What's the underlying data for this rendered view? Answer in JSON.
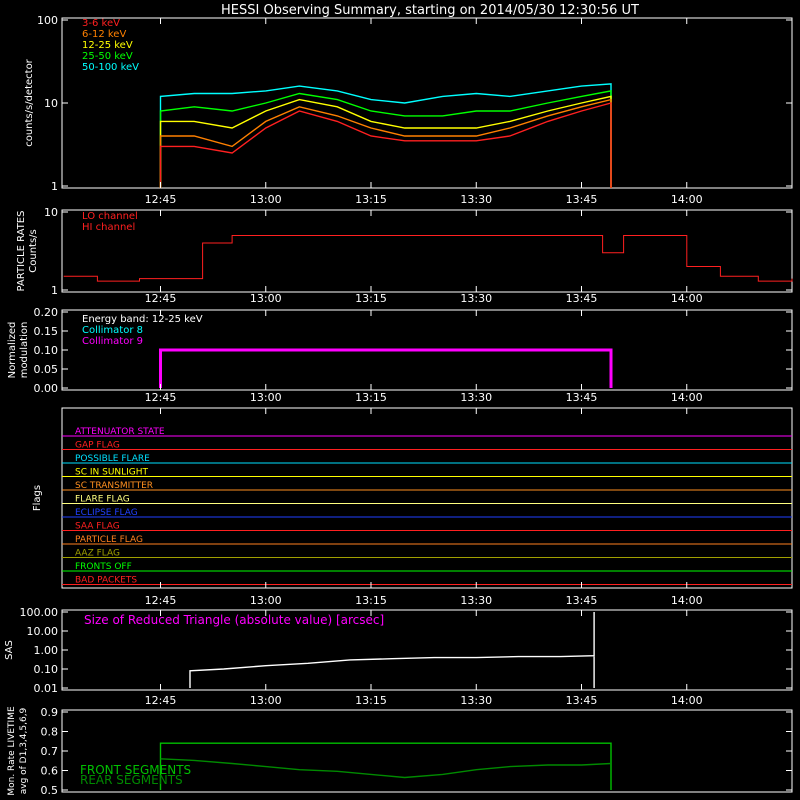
{
  "title": "HESSI Observing Summary, starting on 2014/05/30 12:30:56 UT",
  "colors": {
    "bg": "#000000",
    "axis": "#ffffff",
    "band_3_6": "#ff2020",
    "band_6_12": "#ff8000",
    "band_12_25": "#ffff00",
    "band_25_50": "#00ff00",
    "band_50_100": "#00ffff",
    "particle": "#ff2020",
    "coll8": "#00ffff",
    "coll9": "#ff00ff",
    "sas": "#ffffff",
    "livetime": "#00c000"
  },
  "chart_data": [
    {
      "id": "counts",
      "type": "line",
      "ylabel": "counts/s/detector",
      "yscale": "log",
      "ylim": [
        1,
        100
      ],
      "xlim": [
        12.516,
        14.25
      ],
      "y_ticks": [
        "100",
        "10",
        "1"
      ],
      "x_ticks": [
        "12:45",
        "13:00",
        "13:15",
        "13:30",
        "13:45",
        "14:00"
      ],
      "legend": [
        "3-6 keV",
        "6-12 keV",
        "12-25 keV",
        "25-50 keV",
        "50-100 keV"
      ],
      "legend_position": "top-left",
      "series": [
        {
          "name": "50-100 keV",
          "x": [
            12.75,
            12.83,
            12.92,
            13.0,
            13.08,
            13.17,
            13.25,
            13.33,
            13.42,
            13.5,
            13.58,
            13.67,
            13.75,
            13.82
          ],
          "values": [
            12,
            13,
            13,
            14,
            16,
            14,
            11,
            10,
            12,
            13,
            12,
            14,
            16,
            17
          ]
        },
        {
          "name": "25-50 keV",
          "x": [
            12.75,
            12.83,
            12.92,
            13.0,
            13.08,
            13.17,
            13.25,
            13.33,
            13.42,
            13.5,
            13.58,
            13.67,
            13.75,
            13.82
          ],
          "values": [
            8,
            9,
            8,
            10,
            13,
            11,
            8,
            7,
            7,
            8,
            8,
            10,
            12,
            14
          ]
        },
        {
          "name": "12-25 keV",
          "x": [
            12.75,
            12.83,
            12.92,
            13.0,
            13.08,
            13.17,
            13.25,
            13.33,
            13.42,
            13.5,
            13.58,
            13.67,
            13.75,
            13.82
          ],
          "values": [
            6,
            6,
            5,
            8,
            11,
            9,
            6,
            5,
            5,
            5,
            6,
            8,
            10,
            12
          ]
        },
        {
          "name": "6-12 keV",
          "x": [
            12.75,
            12.83,
            12.92,
            13.0,
            13.08,
            13.17,
            13.25,
            13.33,
            13.42,
            13.5,
            13.58,
            13.67,
            13.75,
            13.82
          ],
          "values": [
            4,
            4,
            3,
            6,
            9,
            7,
            5,
            4,
            4,
            4,
            5,
            7,
            9,
            11
          ]
        },
        {
          "name": "3-6 keV",
          "x": [
            12.75,
            12.83,
            12.92,
            13.0,
            13.08,
            13.17,
            13.25,
            13.33,
            13.42,
            13.5,
            13.58,
            13.67,
            13.75,
            13.82
          ],
          "values": [
            3,
            3,
            2.5,
            5,
            8,
            6,
            4,
            3.5,
            3.5,
            3.5,
            4,
            6,
            8,
            10
          ]
        }
      ]
    },
    {
      "id": "particle",
      "type": "line",
      "ylabel_lines": [
        "PARTICLE RATES",
        "Counts/s"
      ],
      "yscale": "log",
      "ylim": [
        1,
        10
      ],
      "y_ticks": [
        "10",
        "1"
      ],
      "legend": [
        "LO channel",
        "HI channel"
      ],
      "legend_position": "top-left",
      "series": [
        {
          "name": "LO channel",
          "x": [
            12.52,
            12.6,
            12.7,
            12.78,
            12.85,
            12.92,
            13.0,
            13.08,
            13.17,
            13.25,
            13.33,
            13.42,
            13.5,
            13.58,
            13.67,
            13.75,
            13.8,
            13.85,
            13.92,
            14.0,
            14.08,
            14.17,
            14.25
          ],
          "values": [
            1.5,
            1.3,
            1.4,
            1.4,
            4,
            5,
            5,
            5,
            5,
            5,
            5,
            5,
            5,
            5,
            5,
            5,
            3,
            5,
            5,
            2,
            1.5,
            1.3,
            1.4
          ]
        }
      ]
    },
    {
      "id": "modulation",
      "type": "line",
      "ylabel_lines": [
        "Normalized",
        "modulation"
      ],
      "ylim": [
        0,
        0.2
      ],
      "y_ticks": [
        "0.20",
        "0.15",
        "0.10",
        "0.05",
        "0.00"
      ],
      "legend": [
        "Energy band: 12-25 keV",
        "Collimator 8",
        "Collimator 9"
      ],
      "legend_position": "top-left",
      "series": [
        {
          "name": "Collimator 8",
          "x": [
            12.75,
            13.82
          ],
          "values": [
            0.1,
            0.1
          ]
        },
        {
          "name": "Collimator 9",
          "x": [
            12.75,
            13.82
          ],
          "values": [
            0.1,
            0.1
          ]
        }
      ]
    },
    {
      "id": "flags",
      "type": "line",
      "ylabel": "Flags",
      "flags": [
        {
          "name": "ATTENUATOR STATE",
          "color": "#ff00ff"
        },
        {
          "name": "GAP FLAG",
          "color": "#ff2020"
        },
        {
          "name": "POSSIBLE FLARE",
          "color": "#00e0ff"
        },
        {
          "name": "SC IN SUNLIGHT",
          "color": "#ffff00"
        },
        {
          "name": "SC TRANSMITTER",
          "color": "#ff9020"
        },
        {
          "name": "FLARE FLAG",
          "color": "#ffff80"
        },
        {
          "name": "ECLIPSE FLAG",
          "color": "#2040ff"
        },
        {
          "name": "SAA FLAG",
          "color": "#ff2020"
        },
        {
          "name": "PARTICLE FLAG",
          "color": "#ff8020"
        },
        {
          "name": "AAZ FLAG",
          "color": "#a0a000"
        },
        {
          "name": "FRONTS OFF",
          "color": "#00ff00"
        },
        {
          "name": "BAD PACKETS",
          "color": "#ff2020"
        }
      ]
    },
    {
      "id": "sas",
      "type": "line",
      "ylabel": "SAS",
      "yscale": "log",
      "ylim": [
        0.01,
        100
      ],
      "y_ticks": [
        "100.00",
        "10.00",
        "1.00",
        "0.10",
        "0.01"
      ],
      "annotation": "Size of Reduced Triangle (absolute value) [arcsec]",
      "series": [
        {
          "x": [
            12.82,
            12.9,
            13.0,
            13.1,
            13.2,
            13.3,
            13.4,
            13.5,
            13.6,
            13.7,
            13.78
          ],
          "values": [
            0.08,
            0.1,
            0.15,
            0.2,
            0.3,
            0.35,
            0.4,
            0.4,
            0.45,
            0.45,
            0.5
          ]
        }
      ]
    },
    {
      "id": "livetime",
      "type": "line",
      "ylabel_lines": [
        "Mon. Rate LIVETIME",
        "avg of D1,3,4,5,6,9"
      ],
      "ylim": [
        0.5,
        1.0
      ],
      "y_ticks": [
        "0.9",
        "0.8",
        "0.7",
        "0.6",
        "0.5"
      ],
      "legend": [
        "FRONT SEGMENTS",
        "REAR SEGMENTS"
      ],
      "legend_position": "bottom-left",
      "series": [
        {
          "name": "FRONT SEGMENTS",
          "x": [
            12.75,
            13.82
          ],
          "values": [
            0.8,
            0.8
          ]
        },
        {
          "name": "REAR SEGMENTS",
          "x": [
            12.75,
            12.83,
            12.92,
            13.0,
            13.08,
            13.17,
            13.25,
            13.33,
            13.42,
            13.5,
            13.58,
            13.67,
            13.75,
            13.82
          ],
          "values": [
            0.7,
            0.69,
            0.67,
            0.65,
            0.63,
            0.62,
            0.6,
            0.58,
            0.6,
            0.63,
            0.65,
            0.66,
            0.66,
            0.67
          ]
        }
      ]
    }
  ]
}
